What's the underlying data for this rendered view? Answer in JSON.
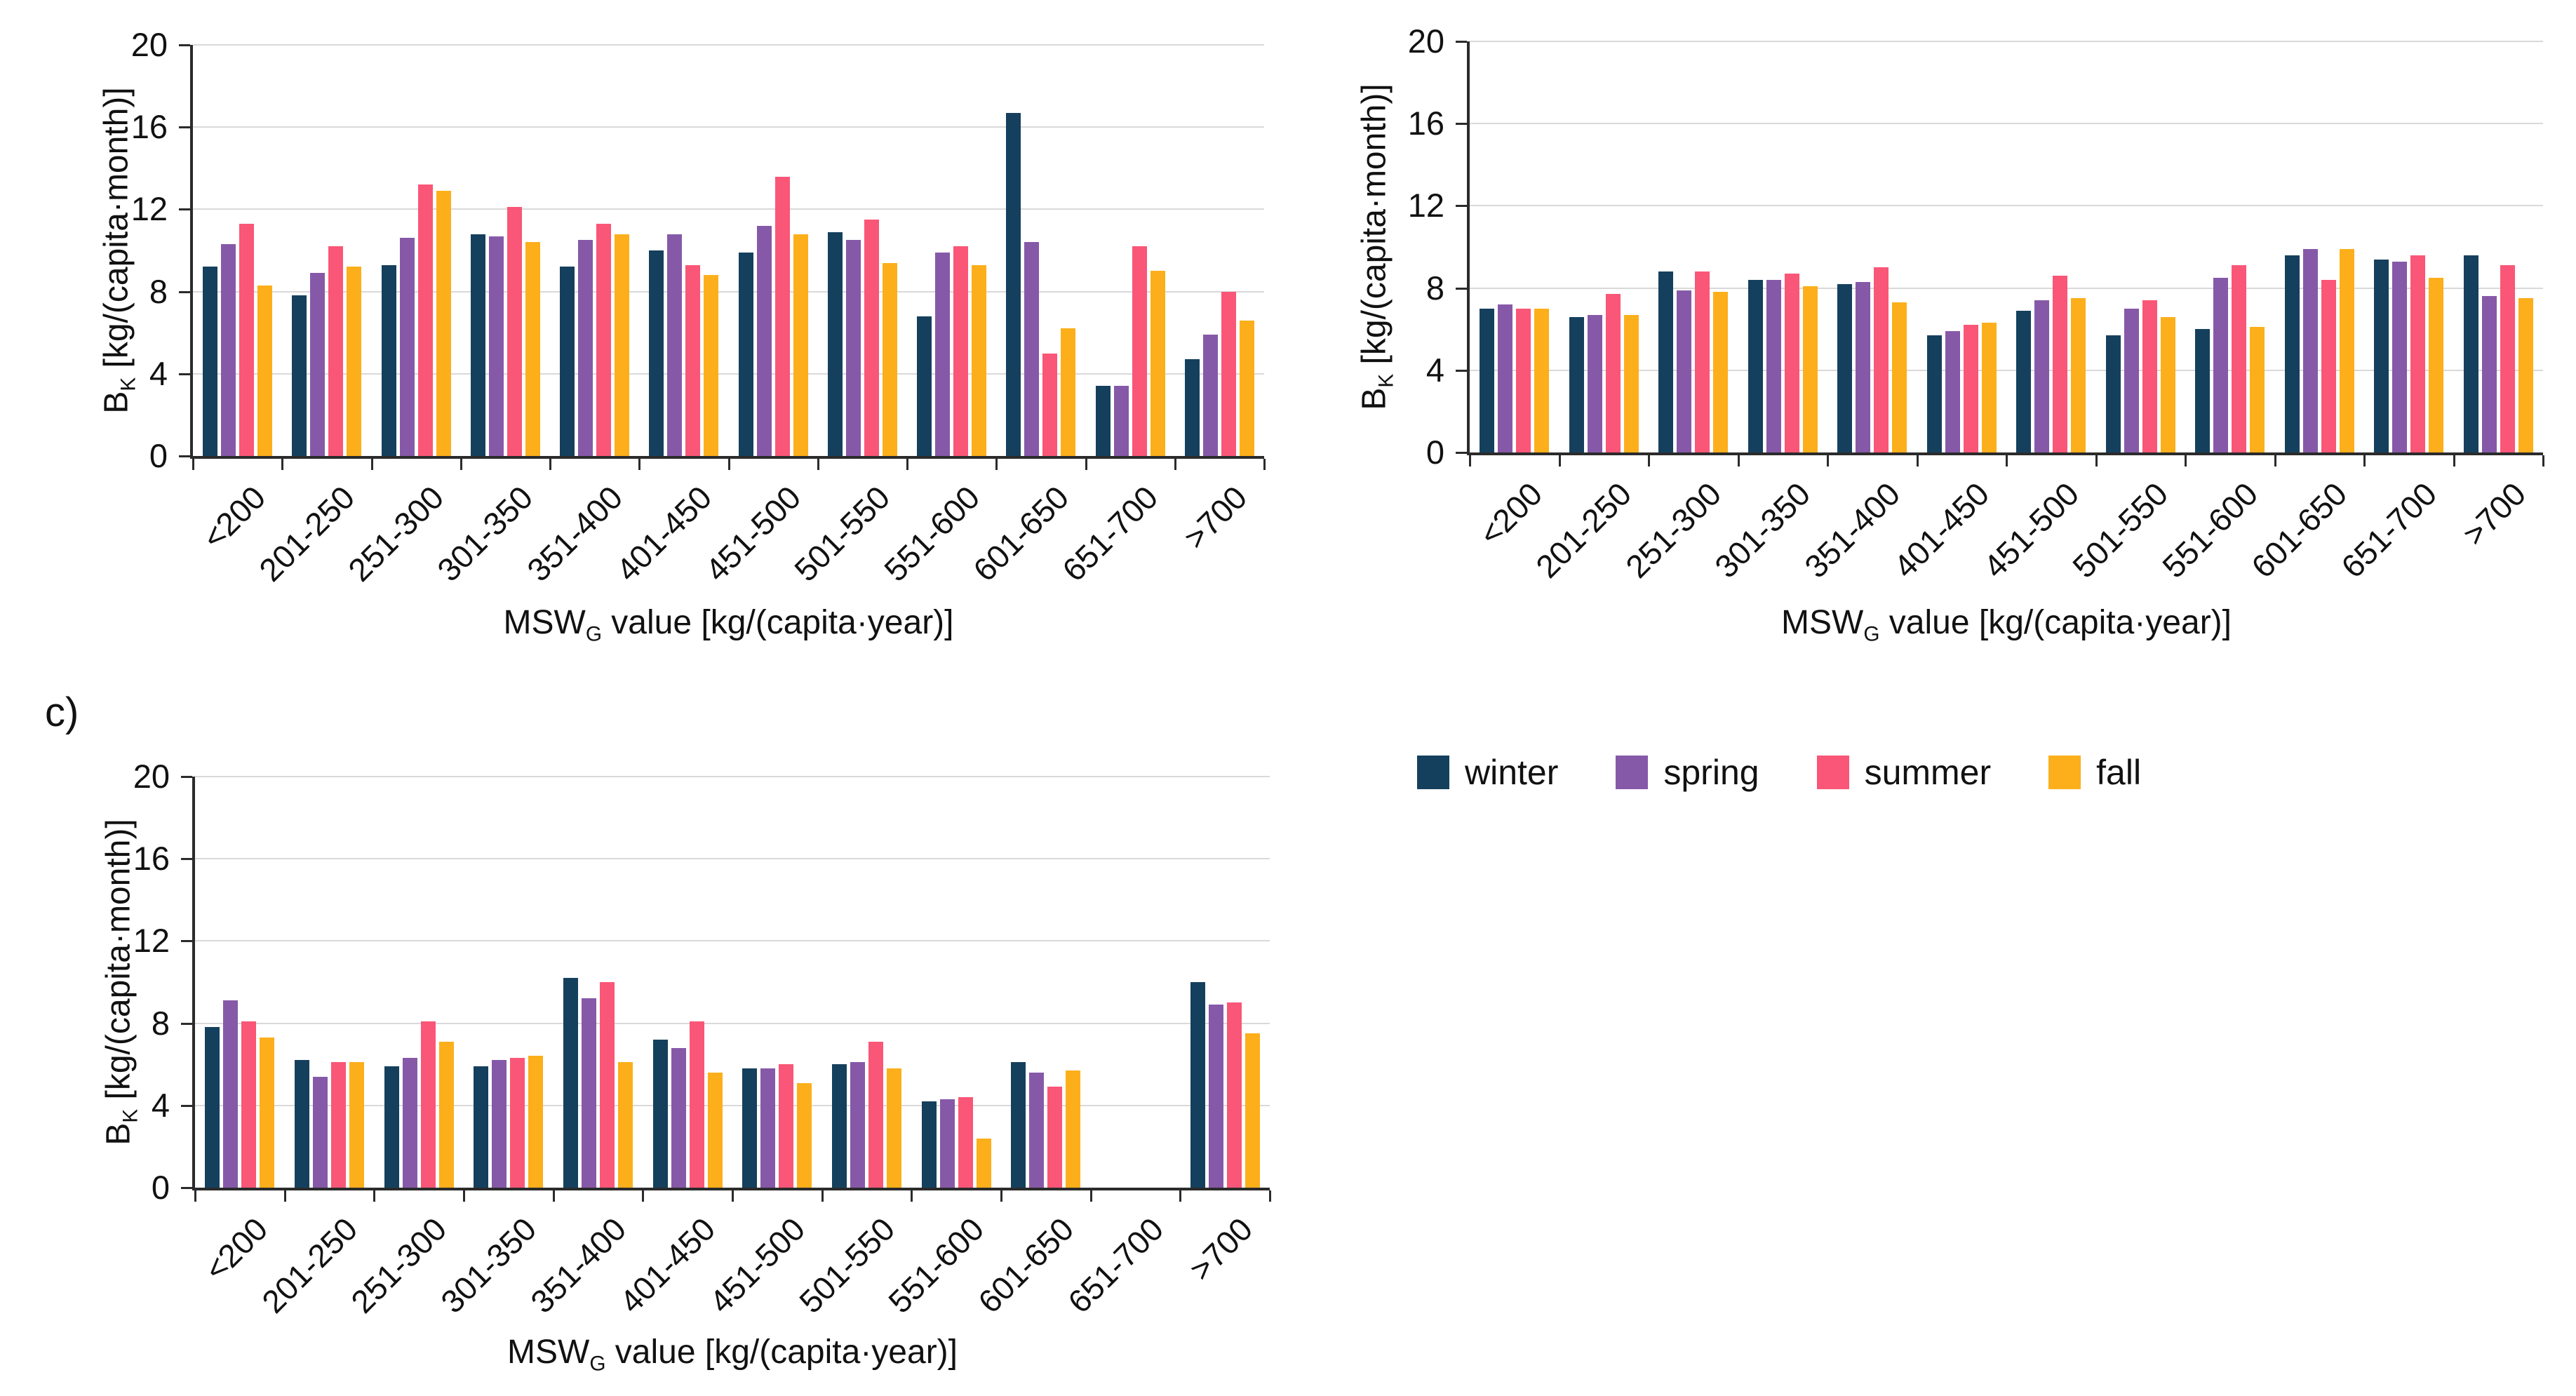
{
  "panel_label_c": "c)",
  "legend": {
    "items": [
      {
        "label": "winter",
        "color": "#15405d"
      },
      {
        "label": "spring",
        "color": "#8659a8"
      },
      {
        "label": "summer",
        "color": "#fa5677"
      },
      {
        "label": "fall",
        "color": "#fcaf1b"
      }
    ]
  },
  "axis_text": {
    "y_title": {
      "main": "B",
      "sub": "K",
      "rest": " [kg/(capita·month)]"
    },
    "x_title": {
      "main": "MSW",
      "sub": "G",
      "rest": " value [kg/(capita·year)]"
    }
  },
  "chart_data": [
    {
      "id": "a",
      "type": "bar",
      "title": "",
      "categories": [
        "<200",
        "201-250",
        "251-300",
        "301-350",
        "351-400",
        "401-450",
        "451-500",
        "501-550",
        "551-600",
        "601-650",
        "651-700",
        ">700"
      ],
      "series": [
        {
          "name": "winter",
          "color": "#15405d",
          "values": [
            9.2,
            7.8,
            9.3,
            10.8,
            9.2,
            10.0,
            9.9,
            10.9,
            6.8,
            16.7,
            3.4,
            4.7
          ]
        },
        {
          "name": "spring",
          "color": "#8659a8",
          "values": [
            10.3,
            8.9,
            10.6,
            10.7,
            10.5,
            10.8,
            11.2,
            10.5,
            9.9,
            10.4,
            3.4,
            5.9
          ]
        },
        {
          "name": "summer",
          "color": "#fa5677",
          "values": [
            11.3,
            10.2,
            13.2,
            12.1,
            11.3,
            9.3,
            13.6,
            11.5,
            10.2,
            5.0,
            10.2,
            8.0
          ]
        },
        {
          "name": "fall",
          "color": "#fcaf1b",
          "values": [
            8.3,
            9.2,
            12.9,
            10.4,
            10.8,
            8.8,
            10.8,
            9.4,
            9.3,
            6.2,
            9.0,
            6.6
          ]
        }
      ],
      "ylabel": "BK [kg/(capita·month)]",
      "xlabel": "MSWG value [kg/(capita·year)]",
      "ylim": [
        0,
        20
      ],
      "yticks": [
        0,
        4,
        8,
        12,
        16,
        20
      ],
      "grid": true,
      "legend_position": "none"
    },
    {
      "id": "b",
      "type": "bar",
      "title": "",
      "categories": [
        "<200",
        "201-250",
        "251-300",
        "301-350",
        "351-400",
        "401-450",
        "451-500",
        "501-550",
        "551-600",
        "601-650",
        "651-700",
        ">700"
      ],
      "series": [
        {
          "name": "winter",
          "color": "#15405d",
          "values": [
            7.0,
            6.6,
            8.8,
            8.4,
            8.2,
            5.7,
            6.9,
            5.7,
            6.0,
            9.6,
            9.4,
            9.6
          ]
        },
        {
          "name": "spring",
          "color": "#8659a8",
          "values": [
            7.2,
            6.7,
            7.9,
            8.4,
            8.3,
            5.9,
            7.4,
            7.0,
            8.5,
            9.9,
            9.3,
            7.6
          ]
        },
        {
          "name": "summer",
          "color": "#fa5677",
          "values": [
            7.0,
            7.7,
            8.8,
            8.7,
            9.0,
            6.2,
            8.6,
            7.4,
            9.1,
            8.4,
            9.6,
            9.1
          ]
        },
        {
          "name": "fall",
          "color": "#fcaf1b",
          "values": [
            7.0,
            6.7,
            7.8,
            8.1,
            7.3,
            6.3,
            7.5,
            6.6,
            6.1,
            9.9,
            8.5,
            7.5
          ]
        }
      ],
      "ylabel": "BK [kg/(capita·month)]",
      "xlabel": "MSWG value [kg/(capita·year)]",
      "ylim": [
        0,
        20
      ],
      "yticks": [
        0,
        4,
        8,
        12,
        16,
        20
      ],
      "grid": true,
      "legend_position": "none"
    },
    {
      "id": "c",
      "type": "bar",
      "title": "",
      "categories": [
        "<200",
        "201-250",
        "251-300",
        "301-350",
        "351-400",
        "401-450",
        "451-500",
        "501-550",
        "551-600",
        "601-650",
        "651-700",
        ">700"
      ],
      "series": [
        {
          "name": "winter",
          "color": "#15405d",
          "values": [
            7.8,
            6.2,
            5.9,
            5.9,
            10.2,
            7.2,
            5.8,
            6.0,
            4.2,
            6.1,
            null,
            10.0
          ]
        },
        {
          "name": "spring",
          "color": "#8659a8",
          "values": [
            9.1,
            5.4,
            6.3,
            6.2,
            9.2,
            6.8,
            5.8,
            6.1,
            4.3,
            5.6,
            null,
            8.9
          ]
        },
        {
          "name": "summer",
          "color": "#fa5677",
          "values": [
            8.1,
            6.1,
            8.1,
            6.3,
            10.0,
            8.1,
            6.0,
            7.1,
            4.4,
            4.9,
            null,
            9.0
          ]
        },
        {
          "name": "fall",
          "color": "#fcaf1b",
          "values": [
            7.3,
            6.1,
            7.1,
            6.4,
            6.1,
            5.6,
            5.1,
            5.8,
            2.4,
            5.7,
            null,
            7.5
          ]
        }
      ],
      "ylabel": "BK [kg/(capita·month)]",
      "xlabel": "MSWG value [kg/(capita·year)]",
      "ylim": [
        0,
        20
      ],
      "yticks": [
        0,
        4,
        8,
        12,
        16,
        20
      ],
      "grid": true,
      "legend_position": "right-of-panel"
    }
  ]
}
